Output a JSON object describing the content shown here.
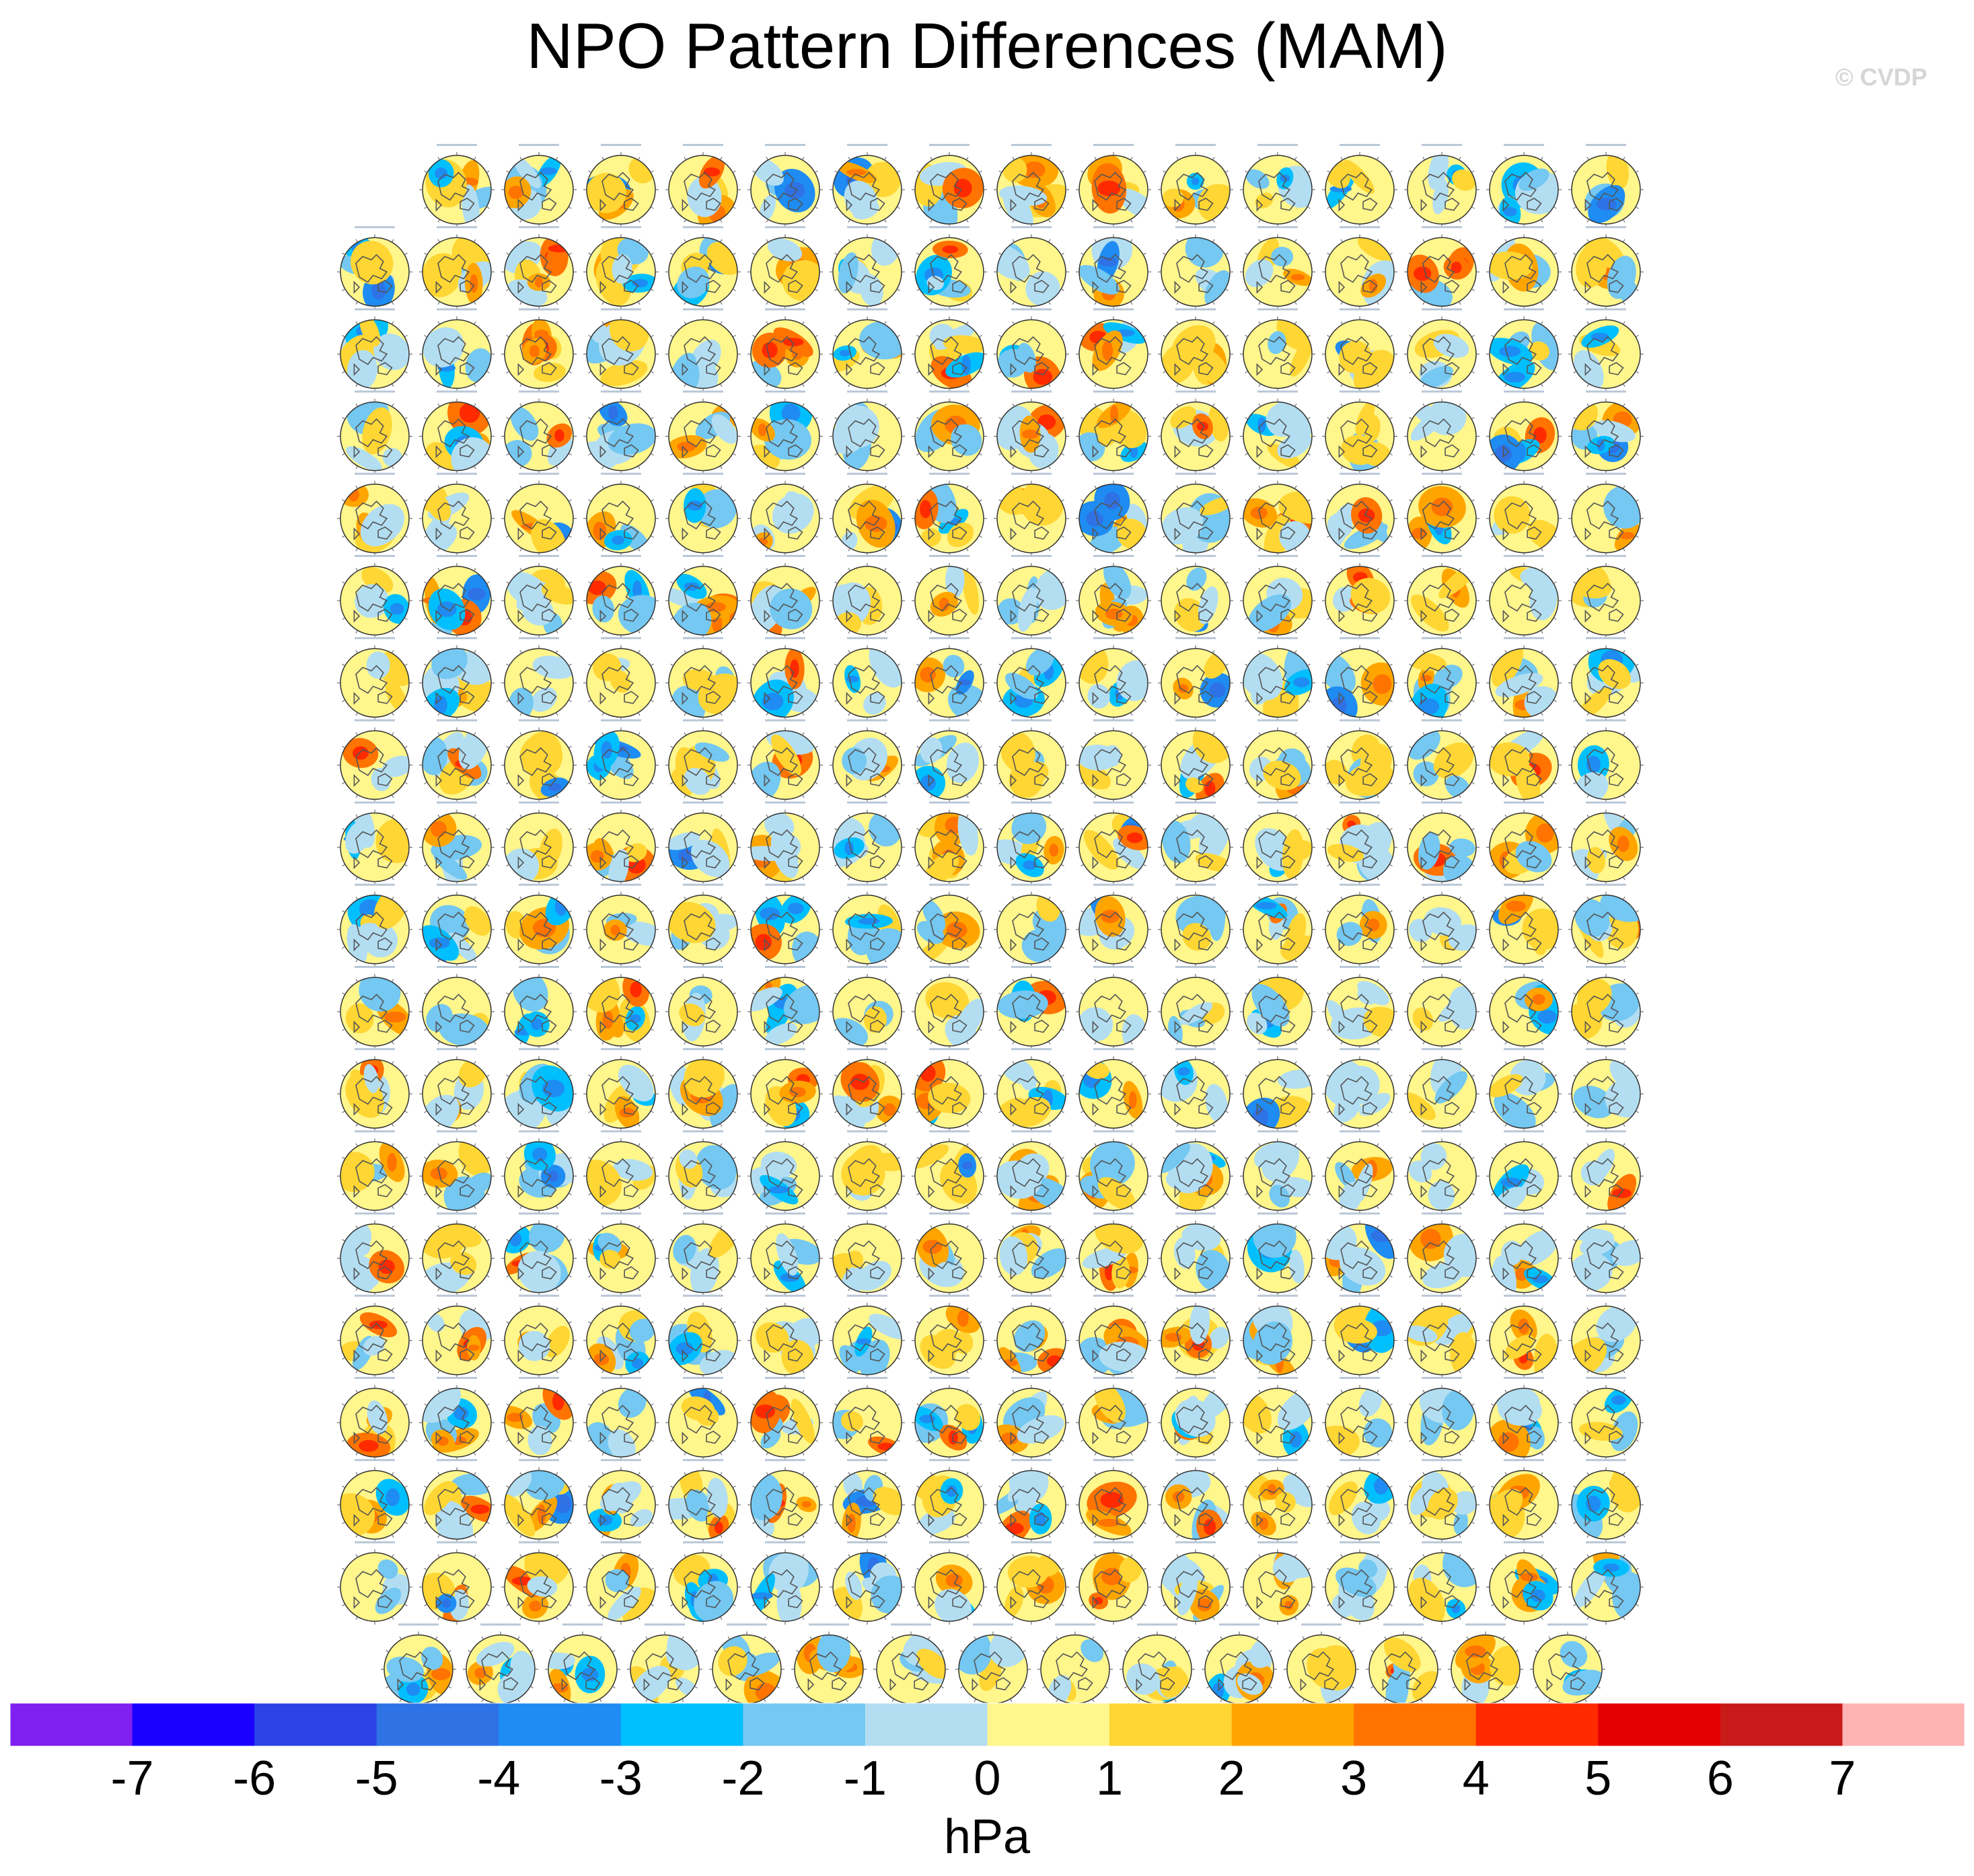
{
  "title": "NPO Pattern Differences (MAM)",
  "watermark": "© CVDP",
  "chart_data": {
    "type": "map-panel-grid",
    "title": "NPO Pattern Differences (MAM)",
    "projection": "polar-stereographic-northern-hemisphere",
    "rows": [
      15,
      16,
      16,
      16,
      16,
      16,
      16,
      16,
      16,
      16,
      16,
      16,
      16,
      16,
      16,
      16,
      16,
      16,
      15
    ],
    "total_panels": 302,
    "colorbar": {
      "label": "hPa",
      "ticks": [
        "-7",
        "-6",
        "-5",
        "-4",
        "-3",
        "-2",
        "-1",
        "0",
        "1",
        "2",
        "3",
        "4",
        "5",
        "6",
        "7"
      ],
      "colors": [
        "#7f1ff0",
        "#1a00ff",
        "#2b43e6",
        "#2e72e6",
        "#1e8cf2",
        "#00bfff",
        "#74c8f2",
        "#b3def2",
        "#fff68c",
        "#ffd633",
        "#ffa500",
        "#ff7300",
        "#ff2a00",
        "#e30000",
        "#c91a1a",
        "#ffb3b3"
      ]
    }
  }
}
